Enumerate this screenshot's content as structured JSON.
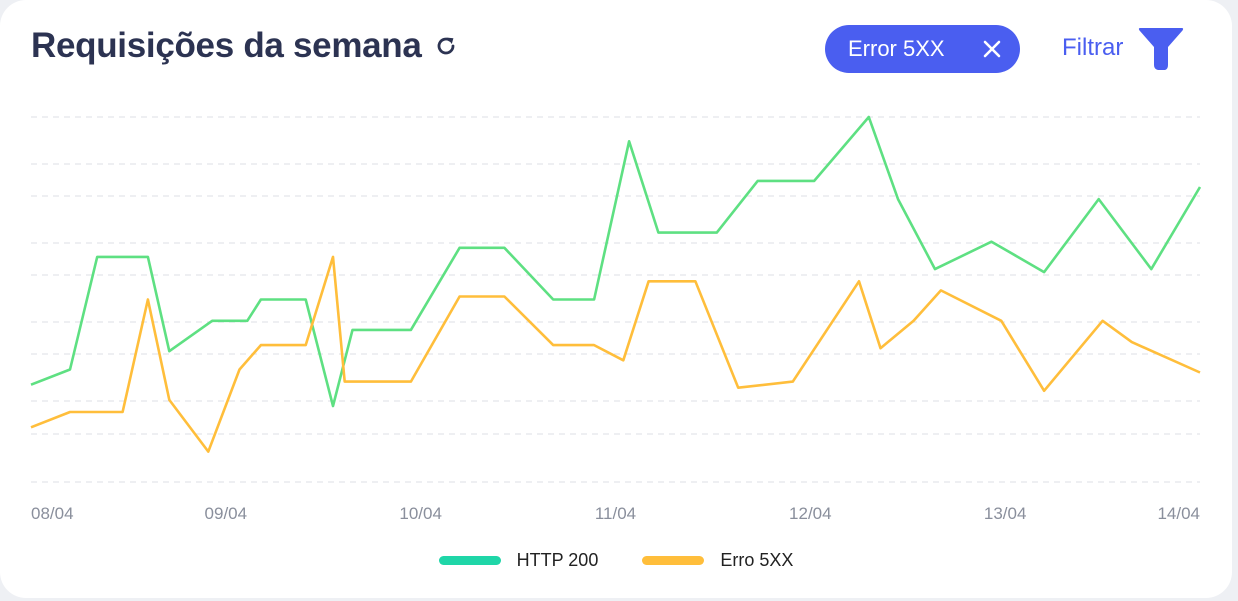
{
  "header": {
    "title": "Requisições da semana",
    "refresh_icon": "refresh-icon",
    "filter_chip": {
      "label": "Error 5XX",
      "close_icon": "close-icon"
    },
    "filter_button": {
      "label": "Filtrar",
      "icon": "funnel-icon"
    }
  },
  "colors": {
    "accent": "#4a5ef0",
    "title": "#2c3352",
    "http200_line": "#5ee082",
    "http200_legend": "#1fd6a8",
    "erro5xx": "#ffbe3b",
    "grid": "#e3e5ea"
  },
  "chart_data": {
    "type": "line",
    "title": "Requisições da semana",
    "x_tick_labels": [
      "08/04",
      "09/04",
      "10/04",
      "11/04",
      "12/04",
      "13/04",
      "14/04"
    ],
    "x_tick_positions": [
      0,
      1,
      2,
      3,
      4,
      5,
      6
    ],
    "xlim": [
      0,
      6
    ],
    "ylim": [
      0,
      12
    ],
    "grid": true,
    "y_axis_labels_visible": false,
    "legend_position": "bottom-center",
    "series": [
      {
        "name": "HTTP 200",
        "x": [
          0,
          0.2,
          0.34,
          0.6,
          0.71,
          0.93,
          1.11,
          1.18,
          1.41,
          1.55,
          1.65,
          1.95,
          2.2,
          2.43,
          2.68,
          2.89,
          3.07,
          3.22,
          3.52,
          3.73,
          4.02,
          4.3,
          4.45,
          4.64,
          4.93,
          5.2,
          5.48,
          5.75,
          6.0
        ],
        "values": [
          3.2,
          3.7,
          7.4,
          7.4,
          4.3,
          5.3,
          5.3,
          6.0,
          6.0,
          2.5,
          5.0,
          5.0,
          7.7,
          7.7,
          6.0,
          6.0,
          11.2,
          8.2,
          8.2,
          9.9,
          9.9,
          12.0,
          9.3,
          7.0,
          7.9,
          6.9,
          9.3,
          7.0,
          9.7
        ]
      },
      {
        "name": "Erro 5XX",
        "x": [
          0,
          0.2,
          0.47,
          0.6,
          0.71,
          0.91,
          1.07,
          1.18,
          1.41,
          1.55,
          1.61,
          1.95,
          2.2,
          2.43,
          2.68,
          2.89,
          3.04,
          3.17,
          3.41,
          3.63,
          3.91,
          4.25,
          4.36,
          4.53,
          4.67,
          4.98,
          5.2,
          5.5,
          5.65,
          6.0
        ],
        "values": [
          1.8,
          2.3,
          2.3,
          6.0,
          2.7,
          1.0,
          3.7,
          4.5,
          4.5,
          7.4,
          3.3,
          3.3,
          6.1,
          6.1,
          4.5,
          4.5,
          4.0,
          6.6,
          6.6,
          3.1,
          3.3,
          6.6,
          4.4,
          5.3,
          6.3,
          5.3,
          3.0,
          5.3,
          4.6,
          3.6
        ]
      }
    ]
  },
  "legend": [
    {
      "label": "HTTP 200"
    },
    {
      "label": "Erro 5XX"
    }
  ]
}
